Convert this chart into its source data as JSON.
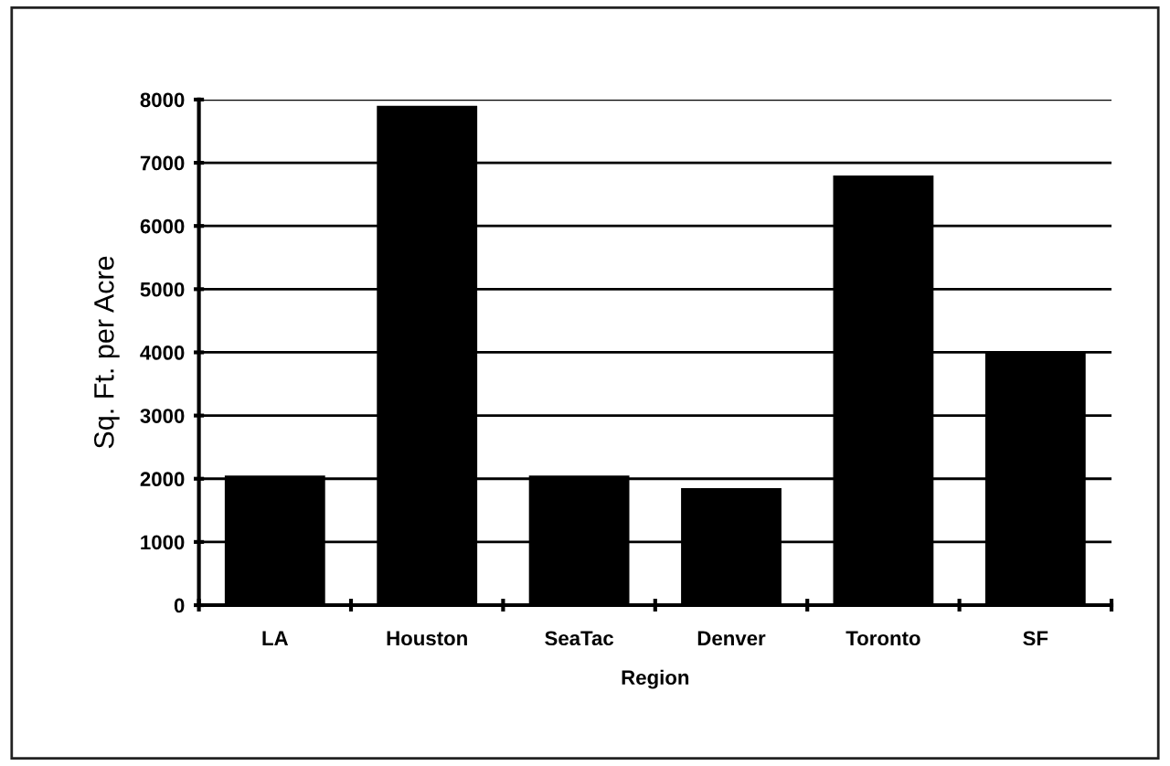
{
  "chart_data": {
    "type": "bar",
    "xlabel": "Region",
    "ylabel": "Sq. Ft. per Acre",
    "categories": [
      "LA",
      "Houston",
      "SeaTac",
      "Denver",
      "Toronto",
      "SF"
    ],
    "values": [
      2050,
      7900,
      2050,
      1850,
      6800,
      4000
    ],
    "color": "#000000",
    "ylim": [
      0,
      8000
    ],
    "yticks": [
      0,
      1000,
      2000,
      3000,
      4000,
      5000,
      6000,
      7000,
      8000
    ],
    "grid": "y"
  }
}
